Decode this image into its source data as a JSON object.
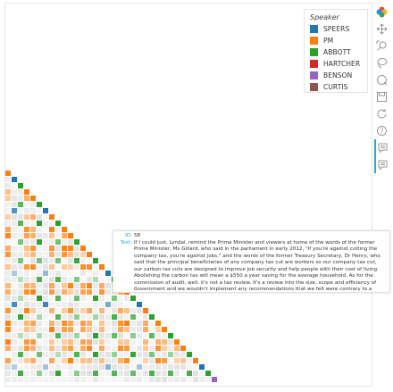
{
  "legend": {
    "title": "Speaker",
    "items": [
      {
        "label": "SPEERS",
        "color": "#1f77b4"
      },
      {
        "label": "PM",
        "color": "#ff7f0e"
      },
      {
        "label": "ABBOTT",
        "color": "#2ca02c"
      },
      {
        "label": "HARTCHER",
        "color": "#d62728"
      },
      {
        "label": "BENSON",
        "color": "#9467bd"
      },
      {
        "label": "CURTIS",
        "color": "#8c564b"
      }
    ]
  },
  "toolbar": {
    "tools": [
      {
        "icon": "bokeh-logo-icon",
        "interactable": false
      },
      {
        "icon": "pan-icon",
        "interactable": true
      },
      {
        "icon": "box-zoom-icon",
        "interactable": true
      },
      {
        "icon": "lasso-select-icon",
        "interactable": true
      },
      {
        "icon": "wheel-zoom-icon",
        "interactable": true
      },
      {
        "icon": "save-icon",
        "interactable": true
      },
      {
        "icon": "reset-icon",
        "interactable": true
      },
      {
        "icon": "help-icon",
        "interactable": true
      },
      {
        "icon": "hover-icon",
        "interactable": true
      },
      {
        "icon": "hover-icon",
        "interactable": true
      }
    ]
  },
  "tooltip": {
    "id_label": "ID:",
    "id_value": "58",
    "text_label": "Text:",
    "text_value": "If I could just, Lyndal, remind the Prime Minister and viewers at home of the words of the former Prime Minister, Ms Gillard, who said in the parliament in early 2012, \"If you're against cutting the company tax, you're against jobs,\" and the words of the former Treasury Secretary, Dr Henry, who said that the principal beneficiaries of any company tax cut are workers so our company tax cut, our carbon tax cuts are designed to improve job security and help people with their cost of living. Abolishing the carbon tax will mean a $550 a year saving for the average household. As for the commission of audit, well, it's not a tax review. It's a review into the size, scope and efficiency of Government and we wouldn't implement any recommendations that we felt were contrary to a mandate."
  }
}
